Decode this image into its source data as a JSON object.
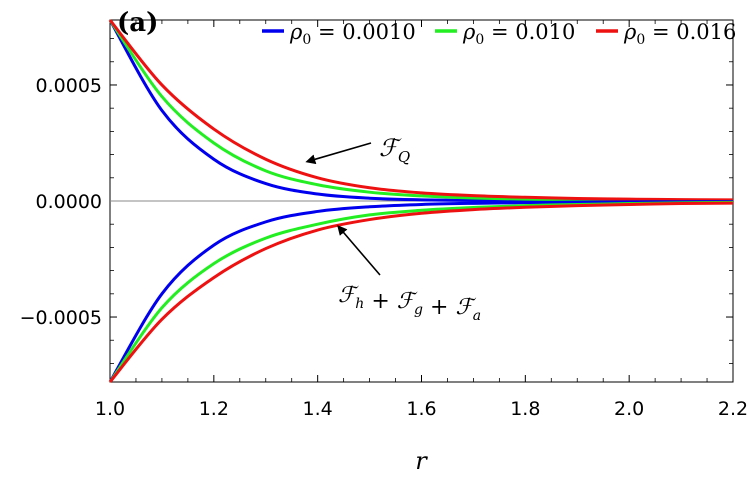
{
  "chart_data": {
    "type": "line",
    "panel_label": "(a)",
    "xlabel": "r",
    "ylabel": "",
    "xlim": [
      1.0,
      2.2
    ],
    "ylim": [
      -0.00078,
      0.00078
    ],
    "x_ticks": [
      1.0,
      1.2,
      1.4,
      1.6,
      1.8,
      2.0,
      2.2
    ],
    "x_tick_labels": [
      "1.0",
      "1.2",
      "1.4",
      "1.6",
      "1.8",
      "2.0",
      "2.2"
    ],
    "y_ticks": [
      0.0005,
      0.0,
      -0.0005
    ],
    "y_tick_labels": [
      "0.0005",
      "0.0000",
      "−0.0005"
    ],
    "x": [
      1.0,
      1.1,
      1.2,
      1.3,
      1.4,
      1.5,
      1.6,
      1.7,
      1.8,
      1.9,
      2.0,
      2.1,
      2.2
    ],
    "legend": {
      "position": "top",
      "entries": [
        {
          "prefix": "ρ",
          "sub": "0",
          "value": " = 0.0010",
          "color": "#0000ee"
        },
        {
          "prefix": "ρ",
          "sub": "0",
          "value": " = 0.010",
          "color": "#22ee22"
        },
        {
          "prefix": "ρ",
          "sub": "0",
          "value": " = 0.016",
          "color": "#ee1111"
        }
      ]
    },
    "series": [
      {
        "name": "ρ₀ = 0.0010 (F_Q)",
        "color": "#0000ee",
        "values": [
          0.00078,
          0.00039,
          0.00018,
          7.5e-05,
          3e-05,
          1.2e-05,
          5e-06,
          2e-06,
          1e-06,
          5e-07,
          3e-07,
          2e-07,
          1e-07
        ]
      },
      {
        "name": "ρ₀ = 0.010 (F_Q)",
        "color": "#22ee22",
        "values": [
          0.00078,
          0.00045,
          0.00025,
          0.00013,
          7e-05,
          3.8e-05,
          2.2e-05,
          1.3e-05,
          8e-06,
          5e-06,
          3e-06,
          2e-06,
          1.5e-06
        ]
      },
      {
        "name": "ρ₀ = 0.016 (F_Q)",
        "color": "#ee1111",
        "values": [
          0.00078,
          0.0005,
          0.00031,
          0.00018,
          0.0001,
          5.7e-05,
          3.5e-05,
          2.3e-05,
          1.6e-05,
          1.1e-05,
          8e-06,
          6e-06,
          5e-06
        ]
      },
      {
        "name": "ρ₀ = 0.0010 (F_h + F_g + F_a)",
        "color": "#0000ee",
        "values": [
          -0.00078,
          -0.0004,
          -0.00019,
          -9e-05,
          -4.5e-05,
          -2.5e-05,
          -1.5e-05,
          -1e-05,
          -7e-06,
          -5e-06,
          -4e-06,
          -3e-06,
          -2.5e-06
        ]
      },
      {
        "name": "ρ₀ = 0.010 (F_h + F_g + F_a)",
        "color": "#22ee22",
        "values": [
          -0.00078,
          -0.00046,
          -0.00027,
          -0.00016,
          -0.0001,
          -6e-05,
          -4e-05,
          -2.8e-05,
          -2e-05,
          -1.5e-05,
          -1.1e-05,
          -8e-06,
          -6e-06
        ]
      },
      {
        "name": "ρ₀ = 0.016 (F_h + F_g + F_a)",
        "color": "#ee1111",
        "values": [
          -0.00078,
          -0.00051,
          -0.00033,
          -0.000205,
          -0.000125,
          -8e-05,
          -5.3e-05,
          -3.7e-05,
          -2.7e-05,
          -2e-05,
          -1.5e-05,
          -1.1e-05,
          -9e-06
        ]
      }
    ],
    "annotations": [
      {
        "id": "fq",
        "base": "ℱ",
        "sub": "Q",
        "arrow_to": [
          1.38,
          0.00017
        ]
      },
      {
        "id": "fsum",
        "parts": [
          {
            "base": "ℱ",
            "sub": "h"
          },
          {
            "op": " + "
          },
          {
            "base": "ℱ",
            "sub": "g"
          },
          {
            "op": " + "
          },
          {
            "base": "ℱ",
            "sub": "a"
          }
        ],
        "arrow_to": [
          1.44,
          -0.00011
        ]
      }
    ],
    "grid": false
  }
}
